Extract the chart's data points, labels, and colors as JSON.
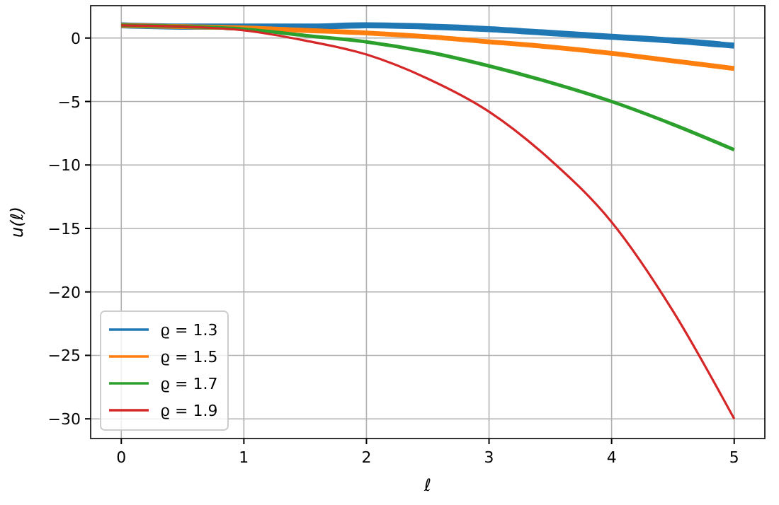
{
  "chart_data": {
    "type": "line",
    "xlabel": "ℓ",
    "ylabel": "u(ℓ)",
    "x": [
      0,
      0.5,
      1,
      1.5,
      2,
      2.5,
      3,
      3.5,
      4,
      4.5,
      5
    ],
    "series": [
      {
        "name": "ϱ = 1.3",
        "color": "#1f77b4",
        "values": [
          1,
          0.9,
          0.9,
          0.9,
          1,
          0.9,
          0.7,
          0.4,
          0.1,
          -0.2,
          -0.6
        ]
      },
      {
        "name": "ϱ = 1.5",
        "color": "#ff7f0e",
        "values": [
          1,
          0.9,
          0.8,
          0.6,
          0.4,
          0.1,
          -0.3,
          -0.7,
          -1.2,
          -1.8,
          -2.4
        ]
      },
      {
        "name": "ϱ = 1.7",
        "color": "#2ca02c",
        "values": [
          1,
          0.9,
          0.7,
          0.2,
          -0.3,
          -1.1,
          -2.2,
          -3.5,
          -5,
          -6.8,
          -8.8
        ]
      },
      {
        "name": "ϱ = 1.9",
        "color": "#d62728",
        "values": [
          1,
          0.9,
          0.6,
          -0.2,
          -1.3,
          -3.2,
          -5.8,
          -9.6,
          -14.5,
          -21.5,
          -30
        ]
      }
    ],
    "xlim": [
      -0.25,
      5.25
    ],
    "xticks": [
      0,
      1,
      2,
      3,
      4,
      5
    ],
    "ylim": [
      -31.55,
      2.55
    ],
    "yticks": [
      {
        "value": 0,
        "label": "0"
      },
      {
        "value": -5,
        "label": "−5"
      },
      {
        "value": -10,
        "label": "−10"
      },
      {
        "value": -15,
        "label": "−15"
      },
      {
        "value": -20,
        "label": "−20"
      },
      {
        "value": -25,
        "label": "−25"
      },
      {
        "value": -30,
        "label": "−30"
      }
    ],
    "grid": true,
    "legend": "bottom left",
    "line_style": "solid",
    "marker": "none"
  }
}
